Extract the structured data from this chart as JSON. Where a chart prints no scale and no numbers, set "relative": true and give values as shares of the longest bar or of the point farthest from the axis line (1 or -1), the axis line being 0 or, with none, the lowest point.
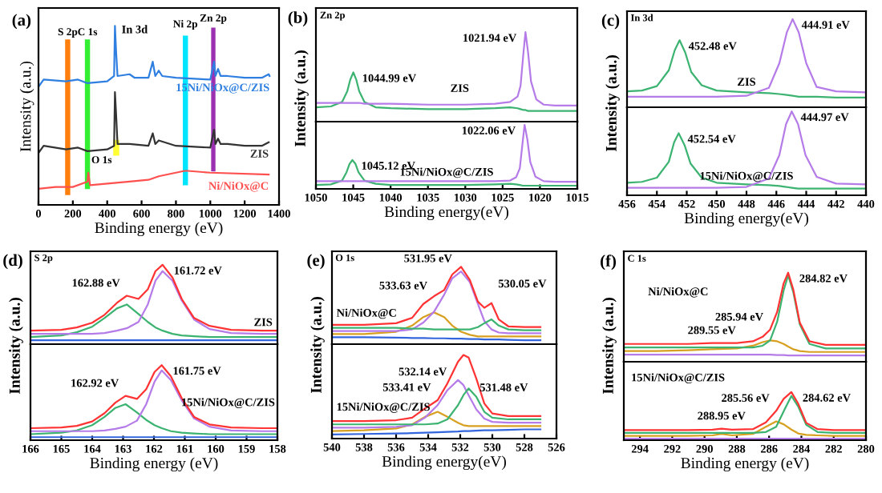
{
  "chart_data": [
    {
      "type": "line",
      "title": "(a)",
      "xlabel": "Binding energy (eV)",
      "ylabel": "Intensity (a.u.)",
      "relative": true,
      "xlim": [
        0,
        1400
      ],
      "xticks": [
        0,
        200,
        400,
        600,
        800,
        1000,
        1200,
        1400
      ],
      "series": [
        {
          "name": "15Ni/NiOx@C/ZIS",
          "color": "#2f7fe0",
          "x": [
            0,
            30,
            160,
            230,
            285,
            400,
            440,
            445,
            452,
            460,
            530,
            560,
            640,
            665,
            680,
            700,
            720,
            800,
            1000,
            1022,
            1030,
            1045,
            1060,
            1100,
            1200,
            1300,
            1340,
            1345
          ],
          "values": [
            0.66,
            0.7,
            0.69,
            0.7,
            0.68,
            0.69,
            0.72,
            1.0,
            0.85,
            0.72,
            0.73,
            0.71,
            0.71,
            0.8,
            0.72,
            0.75,
            0.72,
            0.71,
            0.7,
            0.8,
            0.72,
            0.76,
            0.72,
            0.72,
            0.71,
            0.71,
            0.73,
            0.72
          ]
        },
        {
          "name": "ZIS",
          "color": "#333333",
          "x": [
            0,
            30,
            160,
            230,
            285,
            400,
            440,
            445,
            452,
            460,
            530,
            640,
            665,
            680,
            700,
            800,
            1000,
            1022,
            1030,
            1045,
            1060,
            1100,
            1200,
            1300,
            1340
          ],
          "values": [
            0.29,
            0.33,
            0.31,
            0.32,
            0.3,
            0.31,
            0.33,
            0.63,
            0.5,
            0.34,
            0.34,
            0.33,
            0.4,
            0.34,
            0.36,
            0.33,
            0.32,
            0.42,
            0.34,
            0.37,
            0.34,
            0.34,
            0.33,
            0.33,
            0.35
          ]
        },
        {
          "name": "Ni/NiOx@C",
          "color": "#ff5050",
          "x": [
            0,
            100,
            200,
            285,
            290,
            300,
            530,
            640,
            700,
            850,
            870,
            1000,
            1340
          ],
          "values": [
            0.09,
            0.1,
            0.1,
            0.13,
            0.18,
            0.11,
            0.13,
            0.14,
            0.16,
            0.19,
            0.19,
            0.18,
            0.17
          ]
        }
      ],
      "bands": [
        {
          "axis": "x",
          "from": 155,
          "to": 185,
          "label": "S 2p",
          "color": "#ff7f0e"
        },
        {
          "axis": "x",
          "from": 270,
          "to": 300,
          "label": "C 1s",
          "color": "#33ee33"
        },
        {
          "axis": "x",
          "from": 435,
          "to": 470,
          "label": "O 1s",
          "color": "#ffff33"
        },
        {
          "axis": "x",
          "from": 840,
          "to": 870,
          "label": "Ni 2p",
          "color": "#00e5ff"
        },
        {
          "axis": "x",
          "from": 1005,
          "to": 1030,
          "label": "Zn 2p",
          "color": "#9b30b0"
        }
      ],
      "annotations": [
        {
          "text": "In 3d",
          "x": 445,
          "y": 1.0
        }
      ]
    },
    {
      "type": "line",
      "title": "(b)",
      "subtitle": "Zn 2p",
      "ylabel": "Intensity (a.u.)",
      "relative": true,
      "tick_labels": false,
      "xlim": [
        1050,
        1015
      ],
      "x": [
        1050,
        1048,
        1046.5,
        1045.8,
        1045.4,
        1044.99,
        1044.6,
        1044.2,
        1043.5,
        1042,
        1040,
        1035,
        1030,
        1026,
        1024,
        1023,
        1022.6,
        1022.2,
        1021.94,
        1021.6,
        1021.2,
        1020.5,
        1019.5,
        1018,
        1015
      ],
      "series": [
        {
          "color": "#3cb371",
          "values": [
            0.16,
            0.17,
            0.22,
            0.34,
            0.47,
            0.55,
            0.47,
            0.34,
            0.22,
            0.16,
            0.15,
            0.14,
            0.14,
            0.15,
            0.16,
            0.15,
            0.14,
            0.13,
            0.13,
            0.12,
            0.12,
            0.12,
            0.12,
            0.12,
            0.12
          ]
        },
        {
          "color": "#b57be8",
          "values": [
            0.21,
            0.21,
            0.21,
            0.21,
            0.21,
            0.21,
            0.21,
            0.21,
            0.2,
            0.2,
            0.2,
            0.19,
            0.19,
            0.2,
            0.22,
            0.28,
            0.4,
            0.78,
            1.0,
            0.78,
            0.45,
            0.25,
            0.19,
            0.18,
            0.18
          ]
        }
      ],
      "annotations": [
        "ZIS",
        {
          "text": "1044.99 eV",
          "x": 1044.99,
          "y": 0.55
        },
        {
          "text": "1021.94 eV",
          "x": 1021.94,
          "y": 1.0
        }
      ]
    },
    {
      "type": "line",
      "xlabel": "Binding energy(eV)",
      "relative": true,
      "tick_labels": "x",
      "xlim": [
        1050,
        1015
      ],
      "xticks": [
        1050,
        1045,
        1040,
        1035,
        1030,
        1025,
        1020,
        1015
      ],
      "x": [
        1050,
        1048,
        1046.5,
        1045.9,
        1045.5,
        1045.12,
        1044.7,
        1044.3,
        1043.5,
        1042,
        1040,
        1035,
        1030,
        1026,
        1024,
        1023.2,
        1022.7,
        1022.3,
        1022.06,
        1021.7,
        1021.3,
        1020.6,
        1019.5,
        1018,
        1015
      ],
      "series": [
        {
          "color": "#3cb371",
          "values": [
            0.06,
            0.07,
            0.13,
            0.26,
            0.39,
            0.45,
            0.39,
            0.26,
            0.13,
            0.08,
            0.06,
            0.06,
            0.06,
            0.07,
            0.08,
            0.07,
            0.06,
            0.05,
            0.05,
            0.05,
            0.05,
            0.05,
            0.05,
            0.05,
            0.05
          ]
        },
        {
          "color": "#b57be8",
          "values": [
            0.12,
            0.12,
            0.12,
            0.12,
            0.12,
            0.12,
            0.12,
            0.12,
            0.12,
            0.12,
            0.12,
            0.12,
            0.12,
            0.12,
            0.13,
            0.18,
            0.32,
            0.75,
            1.0,
            0.78,
            0.42,
            0.19,
            0.12,
            0.11,
            0.11
          ]
        }
      ],
      "annotations": [
        "15Ni/NiOx@C/ZIS",
        {
          "text": "1045.12 eV",
          "x": 1045.12,
          "y": 0.45
        },
        {
          "text": "1022.06 eV",
          "x": 1022.06,
          "y": 1.0
        }
      ]
    },
    {
      "type": "line",
      "title": "(c)",
      "subtitle": "In 3d",
      "ylabel": "Intensity (a.u.)",
      "relative": true,
      "tick_labels": false,
      "xlim": [
        456,
        440
      ],
      "x": [
        456,
        455,
        454,
        453.2,
        452.8,
        452.48,
        452.1,
        451.7,
        451,
        450,
        448,
        446.5,
        445.8,
        445.3,
        444.91,
        444.5,
        444.0,
        443.3,
        442,
        440
      ],
      "series": [
        {
          "color": "#3cb371",
          "values": [
            0.18,
            0.19,
            0.24,
            0.42,
            0.65,
            0.76,
            0.62,
            0.4,
            0.25,
            0.19,
            0.17,
            0.16,
            0.15,
            0.14,
            0.13,
            0.12,
            0.12,
            0.12,
            0.11,
            0.11
          ]
        },
        {
          "color": "#b57be8",
          "values": [
            0.12,
            0.12,
            0.12,
            0.12,
            0.12,
            0.12,
            0.12,
            0.12,
            0.12,
            0.12,
            0.13,
            0.22,
            0.5,
            0.85,
            1.0,
            0.85,
            0.5,
            0.23,
            0.18,
            0.17
          ]
        }
      ],
      "annotations": [
        "ZIS",
        {
          "text": "452.48 eV",
          "x": 452.48,
          "y": 0.76
        },
        {
          "text": "444.91 eV",
          "x": 444.91,
          "y": 1.0
        }
      ]
    },
    {
      "type": "line",
      "xlabel": "Binding energy(eV)",
      "relative": true,
      "tick_labels": "x",
      "xlim": [
        456,
        440
      ],
      "xticks": [
        456,
        454,
        452,
        450,
        448,
        446,
        444,
        442,
        440
      ],
      "x": [
        456,
        455,
        454,
        453.2,
        452.85,
        452.54,
        452.15,
        451.75,
        451,
        450,
        448,
        446.5,
        445.8,
        445.35,
        444.97,
        444.55,
        444.05,
        443.3,
        442,
        440
      ],
      "series": [
        {
          "color": "#3cb371",
          "values": [
            0.15,
            0.16,
            0.21,
            0.4,
            0.63,
            0.74,
            0.6,
            0.38,
            0.21,
            0.15,
            0.13,
            0.12,
            0.11,
            0.1,
            0.09,
            0.08,
            0.08,
            0.08,
            0.08,
            0.08
          ]
        },
        {
          "color": "#b57be8",
          "values": [
            0.09,
            0.09,
            0.09,
            0.09,
            0.09,
            0.09,
            0.09,
            0.09,
            0.09,
            0.09,
            0.1,
            0.2,
            0.48,
            0.85,
            1.0,
            0.85,
            0.48,
            0.22,
            0.14,
            0.13
          ]
        }
      ],
      "annotations": [
        "15Ni/NiOx@C/ZIS",
        {
          "text": "452.54 eV",
          "x": 452.54,
          "y": 0.74
        },
        {
          "text": "444.97 eV",
          "x": 444.97,
          "y": 1.0
        }
      ]
    },
    {
      "type": "line",
      "title": "(d)",
      "subtitle": "S 2p",
      "ylabel": "Intensity (a.u.)",
      "relative": true,
      "tick_labels": false,
      "xlim": [
        166,
        158
      ],
      "x": [
        166,
        165,
        164.5,
        164,
        163.6,
        163.2,
        162.88,
        162.5,
        162.2,
        161.95,
        161.72,
        161.4,
        161.1,
        160.7,
        160.2,
        159.5,
        158.5,
        158
      ],
      "series": [
        {
          "color": "#3366dd",
          "values": [
            0.05,
            0.05,
            0.05,
            0.05,
            0.05,
            0.05,
            0.05,
            0.05,
            0.05,
            0.05,
            0.05,
            0.05,
            0.05,
            0.05,
            0.05,
            0.05,
            0.05,
            0.05
          ]
        },
        {
          "color": "#3cb371",
          "values": [
            0.09,
            0.11,
            0.15,
            0.22,
            0.33,
            0.45,
            0.5,
            0.38,
            0.28,
            0.21,
            0.17,
            0.13,
            0.11,
            0.1,
            0.09,
            0.09,
            0.09,
            0.09
          ]
        },
        {
          "color": "#b57be8",
          "values": [
            0.13,
            0.13,
            0.13,
            0.13,
            0.14,
            0.17,
            0.2,
            0.28,
            0.5,
            0.8,
            0.92,
            0.8,
            0.55,
            0.31,
            0.19,
            0.14,
            0.13,
            0.13
          ]
        },
        {
          "color": "#ff3333",
          "values": [
            0.17,
            0.18,
            0.21,
            0.27,
            0.37,
            0.52,
            0.61,
            0.57,
            0.69,
            0.92,
            1.0,
            0.84,
            0.57,
            0.33,
            0.23,
            0.18,
            0.17,
            0.17
          ]
        }
      ],
      "annotations": [
        "ZIS",
        {
          "text": "161.72 eV",
          "x": 161.72,
          "y": 1.0
        },
        {
          "text": "162.88 eV",
          "x": 162.88,
          "y": 0.61
        }
      ]
    },
    {
      "type": "line",
      "xlabel": "Binding energy (eV)",
      "relative": true,
      "tick_labels": "x",
      "xlim": [
        166,
        158
      ],
      "xticks": [
        166,
        165,
        164,
        163,
        162,
        161,
        160,
        159,
        158
      ],
      "x": [
        166,
        165,
        164.5,
        164,
        163.6,
        163.25,
        162.92,
        162.55,
        162.25,
        161.98,
        161.75,
        161.45,
        161.1,
        160.7,
        160.2,
        159.5,
        158.5,
        158
      ],
      "series": [
        {
          "color": "#3366dd",
          "values": [
            0.04,
            0.04,
            0.04,
            0.04,
            0.04,
            0.04,
            0.04,
            0.04,
            0.04,
            0.04,
            0.04,
            0.04,
            0.04,
            0.04,
            0.04,
            0.04,
            0.04,
            0.04
          ]
        },
        {
          "color": "#3cb371",
          "values": [
            0.08,
            0.1,
            0.13,
            0.2,
            0.31,
            0.43,
            0.48,
            0.37,
            0.27,
            0.2,
            0.16,
            0.12,
            0.1,
            0.09,
            0.08,
            0.08,
            0.08,
            0.08
          ]
        },
        {
          "color": "#b57be8",
          "values": [
            0.12,
            0.12,
            0.12,
            0.12,
            0.13,
            0.15,
            0.18,
            0.26,
            0.48,
            0.78,
            0.93,
            0.8,
            0.53,
            0.29,
            0.18,
            0.13,
            0.12,
            0.12
          ]
        },
        {
          "color": "#ff3333",
          "values": [
            0.16,
            0.17,
            0.19,
            0.25,
            0.36,
            0.5,
            0.59,
            0.55,
            0.68,
            0.91,
            1.0,
            0.85,
            0.56,
            0.31,
            0.21,
            0.17,
            0.16,
            0.16
          ]
        }
      ],
      "annotations": [
        "15Ni/NiOx@C/ZIS",
        {
          "text": "161.75 eV",
          "x": 161.75,
          "y": 1.0
        },
        {
          "text": "162.92 eV",
          "x": 162.92,
          "y": 0.59
        }
      ]
    },
    {
      "type": "line",
      "title": "(e)",
      "subtitle": "O 1s",
      "ylabel": "Intensity (a.u.)",
      "relative": true,
      "tick_labels": false,
      "xlim": [
        540,
        526
      ],
      "x": [
        540,
        538,
        536,
        535,
        534.3,
        533.63,
        533,
        532.5,
        531.95,
        531.4,
        530.9,
        530.5,
        530.05,
        529.6,
        529,
        528,
        527
      ],
      "series": [
        {
          "color": "#3366dd",
          "values": [
            0.09,
            0.09,
            0.085,
            0.08,
            0.08,
            0.075,
            0.075,
            0.07,
            0.07,
            0.065,
            0.065,
            0.06,
            0.06,
            0.06,
            0.055,
            0.05,
            0.05
          ]
        },
        {
          "color": "#d8a020",
          "values": [
            0.13,
            0.13,
            0.16,
            0.24,
            0.35,
            0.41,
            0.35,
            0.24,
            0.16,
            0.12,
            0.1,
            0.1,
            0.1,
            0.1,
            0.1,
            0.1,
            0.1
          ]
        },
        {
          "color": "#b57be8",
          "values": [
            0.17,
            0.17,
            0.17,
            0.19,
            0.28,
            0.42,
            0.64,
            0.85,
            0.94,
            0.8,
            0.52,
            0.3,
            0.19,
            0.15,
            0.14,
            0.14,
            0.14
          ]
        },
        {
          "color": "#3cb371",
          "values": [
            0.21,
            0.21,
            0.21,
            0.2,
            0.2,
            0.19,
            0.19,
            0.19,
            0.19,
            0.19,
            0.22,
            0.27,
            0.32,
            0.24,
            0.19,
            0.18,
            0.18
          ]
        },
        {
          "color": "#ff3333",
          "values": [
            0.25,
            0.25,
            0.27,
            0.34,
            0.52,
            0.62,
            0.7,
            0.9,
            1.0,
            0.83,
            0.55,
            0.47,
            0.53,
            0.32,
            0.23,
            0.22,
            0.22
          ]
        }
      ],
      "annotations": [
        "Ni/NiOx@C",
        {
          "text": "531.95 eV",
          "x": 531.95,
          "y": 1.0
        },
        {
          "text": "533.63 eV",
          "x": 533.63,
          "y": 0.62
        },
        {
          "text": "530.05 eV",
          "x": 530.05,
          "y": 0.53
        }
      ]
    },
    {
      "type": "line",
      "xlabel": "Binding energy(eV)",
      "relative": true,
      "tick_labels": "x",
      "xlim": [
        540,
        526
      ],
      "xticks": [
        540,
        538,
        536,
        534,
        532,
        530,
        528,
        526
      ],
      "x": [
        540,
        538,
        536,
        535,
        534.2,
        533.41,
        532.8,
        532.14,
        531.8,
        531.48,
        531,
        530.5,
        530,
        529,
        528,
        527
      ],
      "series": [
        {
          "color": "#3366dd",
          "values": [
            0.05,
            0.055,
            0.06,
            0.065,
            0.07,
            0.075,
            0.08,
            0.085,
            0.09,
            0.09,
            0.095,
            0.1,
            0.1,
            0.105,
            0.11,
            0.11
          ]
        },
        {
          "color": "#d8a020",
          "values": [
            0.09,
            0.1,
            0.12,
            0.17,
            0.26,
            0.32,
            0.26,
            0.19,
            0.16,
            0.15,
            0.15,
            0.15,
            0.15,
            0.15,
            0.15,
            0.15
          ]
        },
        {
          "color": "#b57be8",
          "values": [
            0.13,
            0.13,
            0.14,
            0.16,
            0.25,
            0.4,
            0.58,
            0.7,
            0.64,
            0.52,
            0.35,
            0.24,
            0.2,
            0.19,
            0.19,
            0.19
          ]
        },
        {
          "color": "#3cb371",
          "values": [
            0.17,
            0.17,
            0.17,
            0.17,
            0.17,
            0.18,
            0.23,
            0.4,
            0.52,
            0.6,
            0.5,
            0.32,
            0.25,
            0.23,
            0.23,
            0.23
          ]
        },
        {
          "color": "#ff3333",
          "values": [
            0.21,
            0.21,
            0.22,
            0.25,
            0.36,
            0.46,
            0.66,
            0.92,
            1.0,
            0.97,
            0.72,
            0.42,
            0.3,
            0.27,
            0.27,
            0.27
          ]
        }
      ],
      "annotations": [
        "15Ni/NiOx@C/ZIS",
        {
          "text": "532.14 eV",
          "x": 532.14,
          "y": 0.7
        },
        {
          "text": "533.41 eV",
          "x": 533.41,
          "y": 0.46
        },
        {
          "text": "531.48 eV",
          "x": 531.48,
          "y": 0.6
        }
      ]
    },
    {
      "type": "line",
      "title": "(f)",
      "subtitle": "C 1s",
      "ylabel": "Intensity (a.u.)",
      "relative": true,
      "tick_labels": false,
      "xlim": [
        295,
        280
      ],
      "x": [
        295,
        293,
        291,
        289.55,
        288,
        287,
        286.4,
        285.94,
        285.5,
        285.1,
        284.82,
        284.5,
        284.1,
        283.5,
        282.5,
        281,
        280
      ],
      "series": [
        {
          "color": "#b57be8",
          "values": [
            0.08,
            0.08,
            0.08,
            0.08,
            0.08,
            0.08,
            0.08,
            0.08,
            0.075,
            0.075,
            0.07,
            0.07,
            0.07,
            0.07,
            0.07,
            0.07,
            0.07
          ]
        },
        {
          "color": "#d8a020",
          "values": [
            0.12,
            0.12,
            0.13,
            0.14,
            0.15,
            0.18,
            0.22,
            0.24,
            0.23,
            0.2,
            0.17,
            0.14,
            0.12,
            0.11,
            0.11,
            0.11,
            0.11
          ]
        },
        {
          "color": "#3cb371",
          "values": [
            0.16,
            0.16,
            0.16,
            0.16,
            0.16,
            0.16,
            0.18,
            0.24,
            0.45,
            0.8,
            0.97,
            0.78,
            0.42,
            0.2,
            0.15,
            0.15,
            0.15
          ]
        },
        {
          "color": "#ff3333",
          "values": [
            0.2,
            0.2,
            0.2,
            0.21,
            0.21,
            0.23,
            0.28,
            0.36,
            0.56,
            0.88,
            1.0,
            0.81,
            0.44,
            0.23,
            0.19,
            0.19,
            0.19
          ]
        }
      ],
      "annotations": [
        "Ni/NiOx@C",
        {
          "text": "284.82 eV",
          "x": 284.82,
          "y": 1.0
        },
        {
          "text": "285.94 eV",
          "x": 285.94,
          "y": 0.36
        },
        {
          "text": "289.55 eV",
          "x": 289.55,
          "y": 0.21
        }
      ]
    },
    {
      "type": "line",
      "xlabel": "Binding energy (eV)",
      "relative": true,
      "tick_labels": "x",
      "xlim": [
        295,
        280
      ],
      "xticks": [
        294,
        292,
        290,
        288,
        286,
        284,
        282,
        280
      ],
      "x": [
        295,
        293,
        291,
        289.5,
        288.95,
        288.3,
        287,
        286.2,
        285.56,
        285.1,
        284.62,
        284.2,
        283.7,
        283,
        282,
        281,
        280
      ],
      "series": [
        {
          "color": "#b57be8",
          "values": [
            0.03,
            0.03,
            0.03,
            0.03,
            0.03,
            0.03,
            0.03,
            0.03,
            0.03,
            0.03,
            0.03,
            0.03,
            0.03,
            0.03,
            0.03,
            0.03,
            0.03
          ]
        },
        {
          "color": "#d8a020",
          "values": [
            0.09,
            0.09,
            0.09,
            0.1,
            0.13,
            0.1,
            0.13,
            0.28,
            0.39,
            0.33,
            0.22,
            0.14,
            0.11,
            0.1,
            0.09,
            0.09,
            0.09
          ]
        },
        {
          "color": "#3cb371",
          "values": [
            0.15,
            0.15,
            0.15,
            0.15,
            0.15,
            0.15,
            0.15,
            0.17,
            0.28,
            0.6,
            0.92,
            0.7,
            0.32,
            0.17,
            0.15,
            0.15,
            0.15
          ]
        },
        {
          "color": "#ff3333",
          "values": [
            0.21,
            0.21,
            0.21,
            0.22,
            0.24,
            0.22,
            0.23,
            0.37,
            0.61,
            0.86,
            1.0,
            0.76,
            0.36,
            0.23,
            0.21,
            0.21,
            0.21
          ]
        }
      ],
      "annotations": [
        "15Ni/NiOx@C/ZIS",
        {
          "text": "284.62 eV",
          "x": 284.62,
          "y": 1.0
        },
        {
          "text": "285.56 eV",
          "x": 285.56,
          "y": 0.61
        },
        {
          "text": "288.95 eV",
          "x": 288.95,
          "y": 0.24
        }
      ]
    }
  ]
}
